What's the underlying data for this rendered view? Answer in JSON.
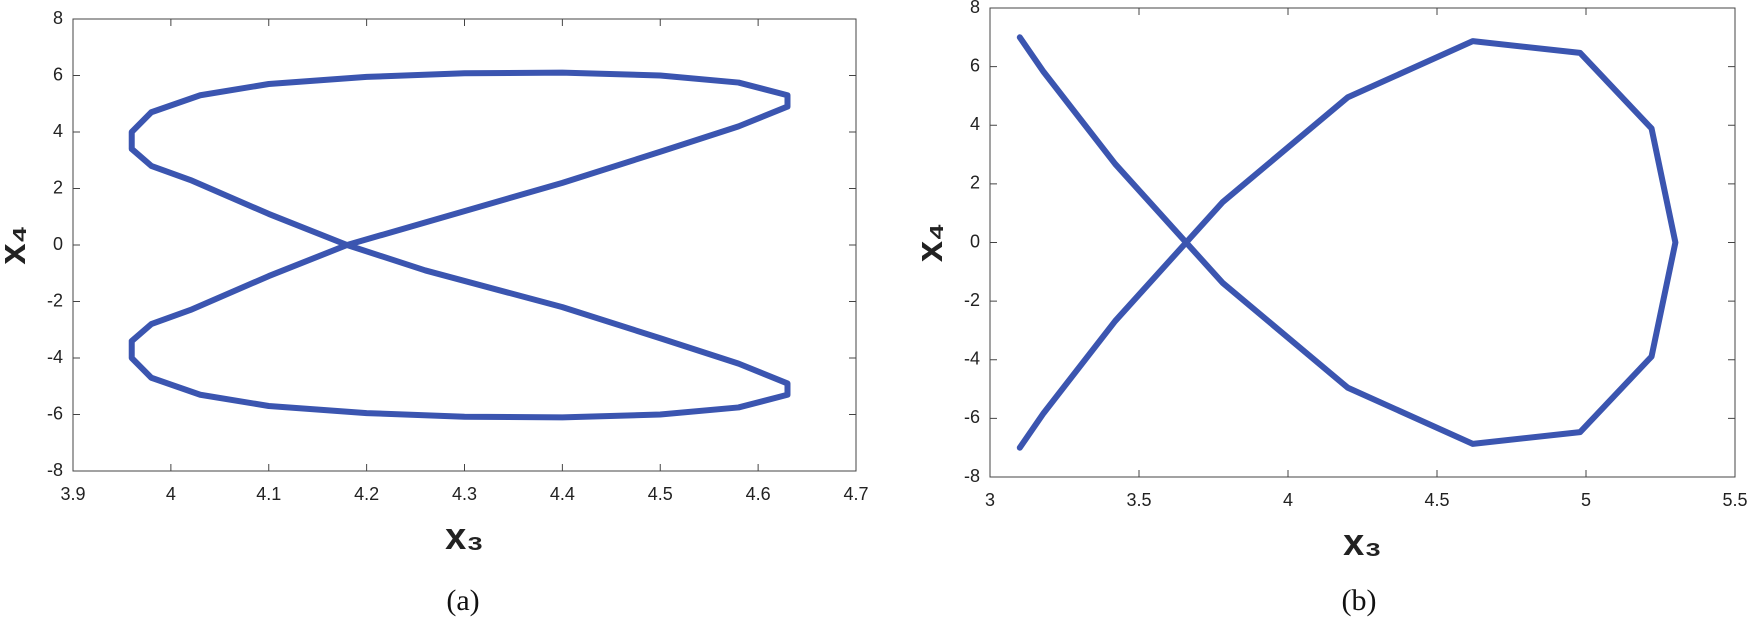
{
  "chart_data": [
    {
      "type": "line",
      "caption": "(a)",
      "xlabel": "x₃",
      "ylabel": "x₄",
      "xlim": [
        3.9,
        4.7
      ],
      "xticks": [
        3.9,
        4,
        4.1,
        4.2,
        4.3,
        4.4,
        4.5,
        4.6,
        4.7
      ],
      "ylim": [
        -8,
        8
      ],
      "yticks": [
        -8,
        -6,
        -4,
        -2,
        0,
        2,
        4,
        6,
        8
      ],
      "series": [
        {
          "color": "#3b55b0",
          "x": [
            4.18,
            4.3,
            4.4,
            4.5,
            4.58,
            4.63,
            4.63,
            4.58,
            4.5,
            4.4,
            4.3,
            4.2,
            4.1,
            4.03,
            3.98,
            3.96,
            3.96,
            3.98,
            4.02,
            4.1,
            4.18,
            4.26,
            4.4,
            4.5,
            4.58,
            4.63,
            4.63,
            4.58,
            4.5,
            4.4,
            4.3,
            4.2,
            4.1,
            4.03,
            3.98,
            3.96,
            3.96,
            3.98,
            4.02,
            4.1,
            4.18
          ],
          "values": [
            0,
            1.2,
            2.2,
            3.3,
            4.2,
            4.9,
            5.3,
            5.75,
            6.0,
            6.1,
            6.08,
            5.95,
            5.7,
            5.3,
            4.7,
            4.0,
            3.4,
            2.8,
            2.3,
            1.1,
            0,
            -0.9,
            -2.2,
            -3.3,
            -4.2,
            -4.9,
            -5.3,
            -5.75,
            -6.0,
            -6.1,
            -6.08,
            -5.95,
            -5.7,
            -5.3,
            -4.7,
            -4.0,
            -3.4,
            -2.8,
            -2.3,
            -1.1,
            0
          ]
        }
      ]
    },
    {
      "type": "line",
      "caption": "(b)",
      "xlabel": "x₃",
      "ylabel": "x₄",
      "xlim": [
        3,
        5.5
      ],
      "xticks": [
        3,
        3.5,
        4,
        4.5,
        5,
        5.5
      ],
      "ylim": [
        -8,
        8
      ],
      "yticks": [
        -8,
        -6,
        -4,
        -2,
        0,
        2,
        4,
        6,
        8
      ],
      "series": [
        {
          "color": "#3b55b0",
          "x": [
            5.3,
            5.22,
            4.98,
            4.62,
            4.2,
            3.78,
            3.42,
            3.18,
            3.1,
            3.18,
            3.42,
            3.78,
            4.2,
            4.62,
            4.98,
            5.22,
            5.3,
            5.22,
            4.98,
            4.62,
            4.2,
            3.78,
            3.42,
            3.18,
            3.1,
            3.18,
            3.42,
            3.78,
            4.2,
            4.62,
            4.98,
            5.22,
            5.3
          ],
          "values": [
            0,
            3.89,
            6.47,
            6.87,
            4.95,
            1.37,
            -2.68,
            -5.82,
            -7,
            -5.82,
            -2.68,
            1.37,
            4.95,
            6.87,
            6.47,
            3.89,
            0,
            -3.89,
            -6.47,
            -6.87,
            -4.95,
            -1.37,
            2.68,
            5.82,
            7,
            5.82,
            2.68,
            -1.37,
            -4.95,
            -6.87,
            -6.47,
            -3.89,
            0
          ]
        }
      ]
    }
  ]
}
